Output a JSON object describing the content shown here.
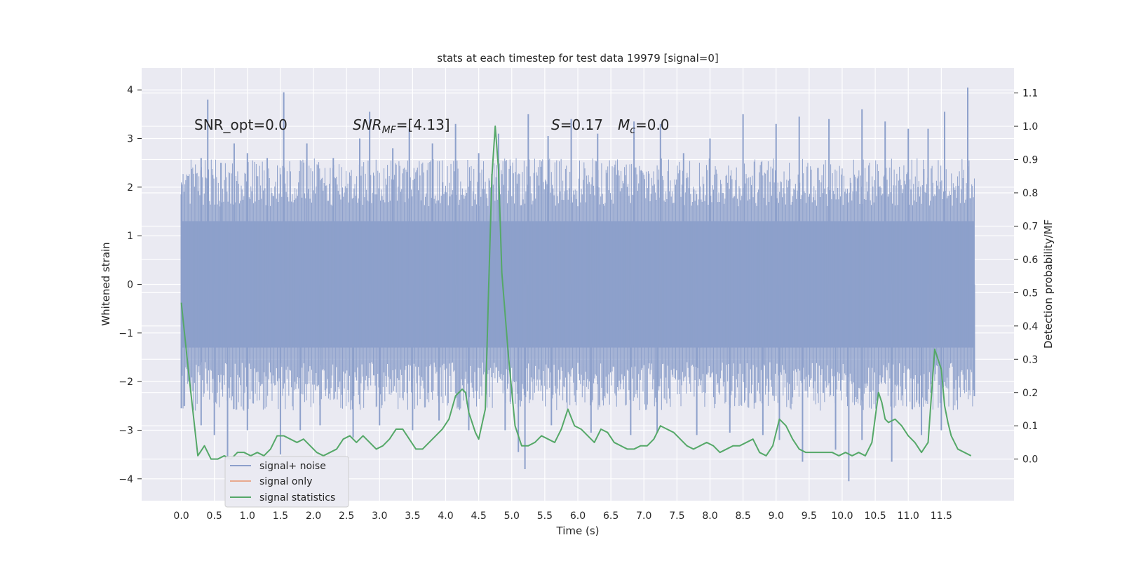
{
  "chart_data": {
    "type": "line",
    "title": "stats at each timestep for test data 19979 [signal=0]",
    "xlabel": "Time (s)",
    "ylabel_left": "Whitened strain",
    "ylabel_right": "Detection probability/MF",
    "xlim": [
      -0.6,
      12.6
    ],
    "ylim_left": [
      -4.45,
      4.45
    ],
    "ylim_right": [
      -0.125,
      1.175
    ],
    "grid": true,
    "x_ticks": [
      "0.0",
      "0.5",
      "1.0",
      "1.5",
      "2.0",
      "2.5",
      "3.0",
      "3.5",
      "4.0",
      "4.5",
      "5.0",
      "5.5",
      "6.0",
      "6.5",
      "7.0",
      "7.5",
      "8.0",
      "8.5",
      "9.0",
      "9.5",
      "10.0",
      "10.5",
      "11.0",
      "11.5"
    ],
    "y_ticks_left": [
      "4",
      "3",
      "2",
      "1",
      "0",
      "−1",
      "−2",
      "−3",
      "−4"
    ],
    "y_ticks_right": [
      "1.1",
      "1.0",
      "0.9",
      "0.8",
      "0.7",
      "0.6",
      "0.5",
      "0.4",
      "0.3",
      "0.2",
      "0.1",
      "0.0"
    ],
    "annotations": {
      "snr_opt": "SNR_opt=0.0",
      "snr_mf_main": "SNR",
      "snr_mf_sub": "MF",
      "snr_mf_value": "=[4.13]",
      "s_symbol": "S",
      "s_value": "=0.17",
      "mc_symbol": "M",
      "mc_sub": "c",
      "mc_value": "=0.0"
    },
    "legend": {
      "placement": "lower-left",
      "entries": [
        "signal+ noise",
        "signal only",
        "signal statistics"
      ]
    },
    "series": [
      {
        "name": "signal+ noise",
        "axis": "left",
        "color": "#8da0cb",
        "x_range": [
          0.0,
          12.0
        ],
        "envelope_description": "dense noise, roughly between -4.1 and 4.1",
        "peaks_upper": [
          [
            0.0,
            1.85
          ],
          [
            0.3,
            2.6
          ],
          [
            0.4,
            3.8
          ],
          [
            0.6,
            2.5
          ],
          [
            0.8,
            2.9
          ],
          [
            1.0,
            2.7
          ],
          [
            1.3,
            2.6
          ],
          [
            1.55,
            3.95
          ],
          [
            1.9,
            2.9
          ],
          [
            2.3,
            2.6
          ],
          [
            2.7,
            3.0
          ],
          [
            2.85,
            3.55
          ],
          [
            3.2,
            2.8
          ],
          [
            3.45,
            3.2
          ],
          [
            3.8,
            2.9
          ],
          [
            4.15,
            3.3
          ],
          [
            4.5,
            2.7
          ],
          [
            4.8,
            3.1
          ],
          [
            5.25,
            3.5
          ],
          [
            5.55,
            3.05
          ],
          [
            5.9,
            3.4
          ],
          [
            6.3,
            3.1
          ],
          [
            6.85,
            3.35
          ],
          [
            7.25,
            3.3
          ],
          [
            7.6,
            2.7
          ],
          [
            8.0,
            3.0
          ],
          [
            8.5,
            3.5
          ],
          [
            9.0,
            3.3
          ],
          [
            9.35,
            3.45
          ],
          [
            9.8,
            3.4
          ],
          [
            10.3,
            3.6
          ],
          [
            10.65,
            3.35
          ],
          [
            11.0,
            3.2
          ],
          [
            11.3,
            3.2
          ],
          [
            11.55,
            3.55
          ],
          [
            11.9,
            4.05
          ]
        ],
        "peaks_lower": [
          [
            0.0,
            -2.55
          ],
          [
            0.3,
            -2.9
          ],
          [
            0.5,
            -3.1
          ],
          [
            0.7,
            -3.6
          ],
          [
            1.0,
            -3.0
          ],
          [
            1.5,
            -3.5
          ],
          [
            1.8,
            -3.0
          ],
          [
            2.1,
            -2.9
          ],
          [
            2.6,
            -3.15
          ],
          [
            3.0,
            -2.9
          ],
          [
            3.5,
            -3.0
          ],
          [
            3.9,
            -2.8
          ],
          [
            4.35,
            -3.0
          ],
          [
            4.9,
            -3.0
          ],
          [
            5.1,
            -3.45
          ],
          [
            5.2,
            -3.8
          ],
          [
            5.6,
            -2.9
          ],
          [
            6.2,
            -3.05
          ],
          [
            6.8,
            -3.1
          ],
          [
            7.2,
            -3.05
          ],
          [
            7.8,
            -3.1
          ],
          [
            8.3,
            -3.05
          ],
          [
            8.8,
            -3.1
          ],
          [
            9.05,
            -3.2
          ],
          [
            9.4,
            -3.65
          ],
          [
            9.9,
            -3.4
          ],
          [
            10.1,
            -4.05
          ],
          [
            10.3,
            -3.2
          ],
          [
            10.75,
            -3.65
          ],
          [
            11.2,
            -3.1
          ],
          [
            11.5,
            -3.0
          ],
          [
            12.0,
            -2.3
          ]
        ]
      },
      {
        "name": "signal only",
        "axis": "left",
        "color": "#e8a98e",
        "x": [],
        "y": []
      },
      {
        "name": "signal statistics",
        "axis": "right",
        "color": "#55a868",
        "x": [
          0.0,
          0.1,
          0.2,
          0.25,
          0.35,
          0.45,
          0.55,
          0.65,
          0.75,
          0.85,
          0.95,
          1.05,
          1.15,
          1.25,
          1.35,
          1.45,
          1.55,
          1.65,
          1.75,
          1.85,
          1.95,
          2.05,
          2.15,
          2.25,
          2.35,
          2.45,
          2.55,
          2.65,
          2.75,
          2.85,
          2.95,
          3.05,
          3.15,
          3.25,
          3.35,
          3.45,
          3.55,
          3.65,
          3.75,
          3.85,
          3.95,
          4.05,
          4.15,
          4.25,
          4.3,
          4.35,
          4.45,
          4.5,
          4.6,
          4.65,
          4.7,
          4.75,
          4.8,
          4.85,
          4.95,
          5.05,
          5.15,
          5.25,
          5.35,
          5.45,
          5.55,
          5.65,
          5.75,
          5.85,
          5.95,
          6.05,
          6.15,
          6.25,
          6.35,
          6.45,
          6.55,
          6.65,
          6.75,
          6.85,
          6.95,
          7.05,
          7.15,
          7.25,
          7.35,
          7.45,
          7.55,
          7.65,
          7.75,
          7.85,
          7.95,
          8.05,
          8.15,
          8.25,
          8.35,
          8.45,
          8.55,
          8.65,
          8.75,
          8.85,
          8.95,
          9.05,
          9.15,
          9.25,
          9.35,
          9.45,
          9.55,
          9.65,
          9.75,
          9.85,
          9.95,
          10.05,
          10.15,
          10.25,
          10.35,
          10.45,
          10.55,
          10.6,
          10.65,
          10.7,
          10.8,
          10.9,
          11.0,
          11.1,
          11.2,
          11.3,
          11.4,
          11.5,
          11.55,
          11.6,
          11.65,
          11.75,
          11.85,
          11.95
        ],
        "y": [
          0.47,
          0.28,
          0.1,
          0.01,
          0.04,
          0.0,
          0.0,
          0.01,
          0.0,
          0.02,
          0.02,
          0.01,
          0.02,
          0.01,
          0.03,
          0.07,
          0.07,
          0.06,
          0.05,
          0.06,
          0.04,
          0.02,
          0.01,
          0.02,
          0.03,
          0.06,
          0.07,
          0.05,
          0.07,
          0.05,
          0.03,
          0.04,
          0.06,
          0.09,
          0.09,
          0.06,
          0.03,
          0.03,
          0.05,
          0.07,
          0.09,
          0.12,
          0.19,
          0.21,
          0.2,
          0.14,
          0.08,
          0.06,
          0.15,
          0.51,
          0.85,
          1.0,
          0.87,
          0.56,
          0.31,
          0.1,
          0.04,
          0.04,
          0.05,
          0.07,
          0.06,
          0.05,
          0.09,
          0.15,
          0.1,
          0.09,
          0.07,
          0.05,
          0.09,
          0.08,
          0.05,
          0.04,
          0.03,
          0.03,
          0.04,
          0.04,
          0.06,
          0.1,
          0.09,
          0.08,
          0.06,
          0.04,
          0.03,
          0.04,
          0.05,
          0.04,
          0.02,
          0.03,
          0.04,
          0.04,
          0.05,
          0.06,
          0.02,
          0.01,
          0.04,
          0.12,
          0.1,
          0.06,
          0.03,
          0.02,
          0.02,
          0.02,
          0.02,
          0.02,
          0.01,
          0.02,
          0.01,
          0.02,
          0.01,
          0.05,
          0.2,
          0.17,
          0.12,
          0.11,
          0.12,
          0.1,
          0.07,
          0.05,
          0.02,
          0.05,
          0.33,
          0.27,
          0.16,
          0.11,
          0.07,
          0.03,
          0.02,
          0.01
        ]
      }
    ]
  }
}
